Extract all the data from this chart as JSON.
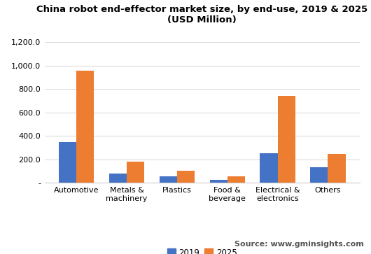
{
  "title": "China robot end-effector market size, by end-use, 2019 & 2025\n(USD Million)",
  "categories": [
    "Automotive",
    "Metals &\nmachinery",
    "Plastics",
    "Food &\nbeverage",
    "Electrical &\nelectronics",
    "Others"
  ],
  "values_2019": [
    350,
    80,
    55,
    25,
    250,
    135
  ],
  "values_2025": [
    955,
    180,
    105,
    55,
    740,
    245
  ],
  "color_2019": "#4472c4",
  "color_2025": "#ed7d31",
  "legend_labels": [
    "2019",
    "2025"
  ],
  "ylim": [
    0,
    1300
  ],
  "yticks": [
    0,
    200,
    400,
    600,
    800,
    1000,
    1200
  ],
  "ytick_labels": [
    "-",
    "200.0",
    "400.0",
    "600.0",
    "800.0",
    "1,000.0",
    "1,200.0"
  ],
  "source_text": "Source: www.gminsights.com",
  "background_color": "#ffffff",
  "footer_color": "#e8e8e8",
  "bar_width": 0.35,
  "title_fontsize": 9.5,
  "tick_fontsize": 8,
  "legend_fontsize": 8.5,
  "source_fontsize": 8
}
